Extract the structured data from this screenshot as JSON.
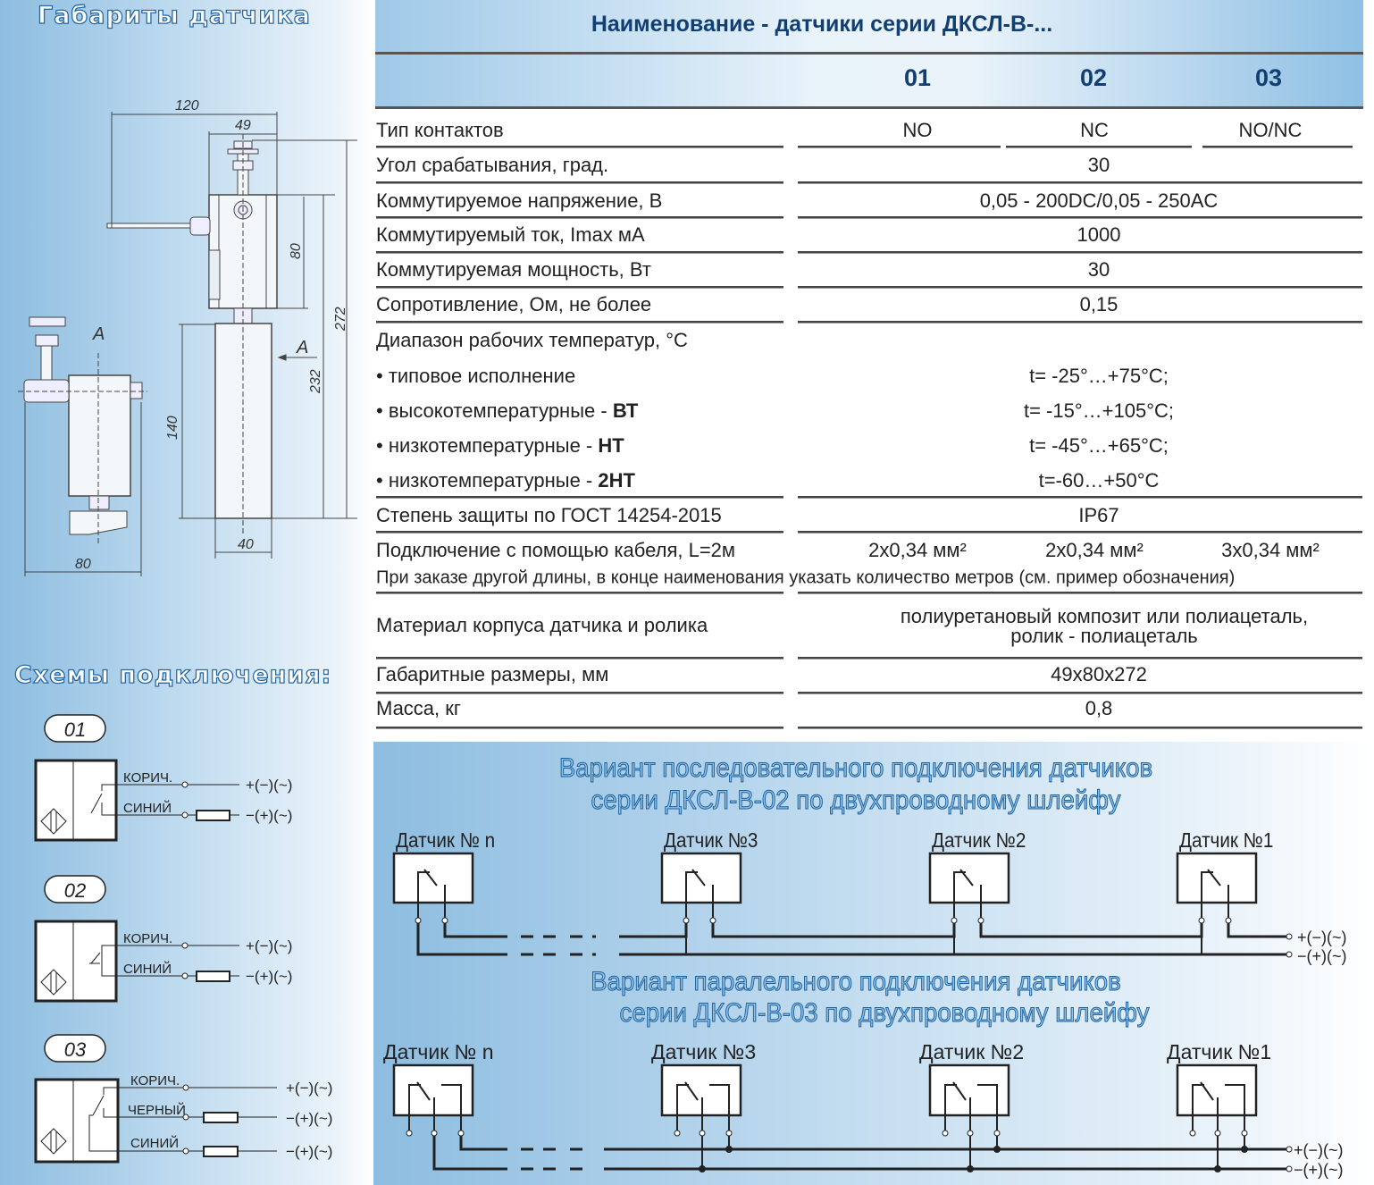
{
  "left": {
    "dimensions_title": "Габариты датчика",
    "dimensions": {
      "d120": "120",
      "d49": "49",
      "d80h": "80",
      "d272": "272",
      "d232": "232",
      "d140": "140",
      "d40": "40",
      "d80w": "80",
      "view_a": "A",
      "arrow_a": "A"
    },
    "schemes_title": "Схемы подключения:",
    "schemes": [
      {
        "id": "01",
        "wires": [
          "КОРИЧ.",
          "СИНИЙ"
        ],
        "ends": [
          "+(−)(~)",
          "−(+)(~)"
        ]
      },
      {
        "id": "02",
        "wires": [
          "КОРИЧ.",
          "СИНИЙ"
        ],
        "ends": [
          "+(−)(~)",
          "−(+)(~)"
        ]
      },
      {
        "id": "03",
        "wires": [
          "КОРИЧ.",
          "ЧЕРНЫЙ",
          "СИНИЙ"
        ],
        "ends": [
          "+(−)(~)",
          "−(+)(~)",
          "−(+)(~)"
        ]
      }
    ]
  },
  "table": {
    "title": "Наименование - датчики серии ДКСЛ-В-...",
    "columns": [
      "01",
      "02",
      "03"
    ],
    "rows": [
      {
        "label": "Тип контактов",
        "values": [
          "NO",
          "NC",
          "NO/NC"
        ]
      },
      {
        "label": "Угол срабатывания, град.",
        "value": "30"
      },
      {
        "label": "Коммутируемое напряжение, В",
        "value": "0,05 - 200DC/0,05 - 250AC"
      },
      {
        "label": "Коммутируемый ток, Imax мА",
        "value": "1000"
      },
      {
        "label": "Коммутируемая мощность, Вт",
        "value": "30"
      },
      {
        "label": "Сопротивление, Ом, не более",
        "value": "0,15"
      },
      {
        "label": "Диапазон рабочих температур, °С"
      },
      {
        "label": "• типовое исполнение",
        "value": "t= -25°…+75°С;"
      },
      {
        "label": "• высокотемпературные  - ",
        "bold": "ВТ",
        "value": "t= -15°…+105°С;"
      },
      {
        "label": "• низкотемпературные - ",
        "bold": "НТ",
        "value": "t= -45°…+65°С;"
      },
      {
        "label": "• низкотемпературные - ",
        "bold": "2НТ",
        "value": "t=-60…+50°С"
      },
      {
        "label": "Степень защиты по ГОСТ 14254-2015",
        "value": "IP67"
      },
      {
        "label": "Подключение с помощью кабеля, L=2м",
        "values": [
          "2х0,34 мм²",
          "2х0,34 мм²",
          "3х0,34 мм²"
        ]
      },
      {
        "label": "При заказе другой длины, в конце наименования указать количество метров (см. пример обозначения)"
      },
      {
        "label": "Материал корпуса датчика и ролика",
        "value": "полиуретановый композит или полиацеталь,",
        "value2": "ролик - полиацеталь"
      },
      {
        "label": "Габаритные размеры, мм",
        "value": "49х80х272"
      },
      {
        "label": "Масса, кг",
        "value": "0,8"
      }
    ]
  },
  "series": {
    "title1": "Вариант последовательного подключения датчиков",
    "title2": "серии ДКСЛ-В-02 по двухпроводному шлейфу",
    "sensors": [
      "Датчик № n",
      "Датчик №3",
      "Датчик №2",
      "Датчик №1"
    ],
    "ends": [
      "+(−)(~)",
      "−(+)(~)"
    ]
  },
  "parallel": {
    "title1": "Вариант паралельного подключения датчиков",
    "title2": "серии ДКСЛ-В-03 по двухпроводному шлейфу",
    "sensors": [
      "Датчик № n",
      "Датчик №3",
      "Датчик №2",
      "Датчик №1"
    ],
    "ends": [
      "+(−)(~)",
      "−(+)(~)"
    ]
  },
  "colors": {
    "header_text": "#123f73",
    "title_fill": "#8cc1ea",
    "title_stroke": "#1d5f99",
    "panel_blue": "#8dbde0"
  }
}
